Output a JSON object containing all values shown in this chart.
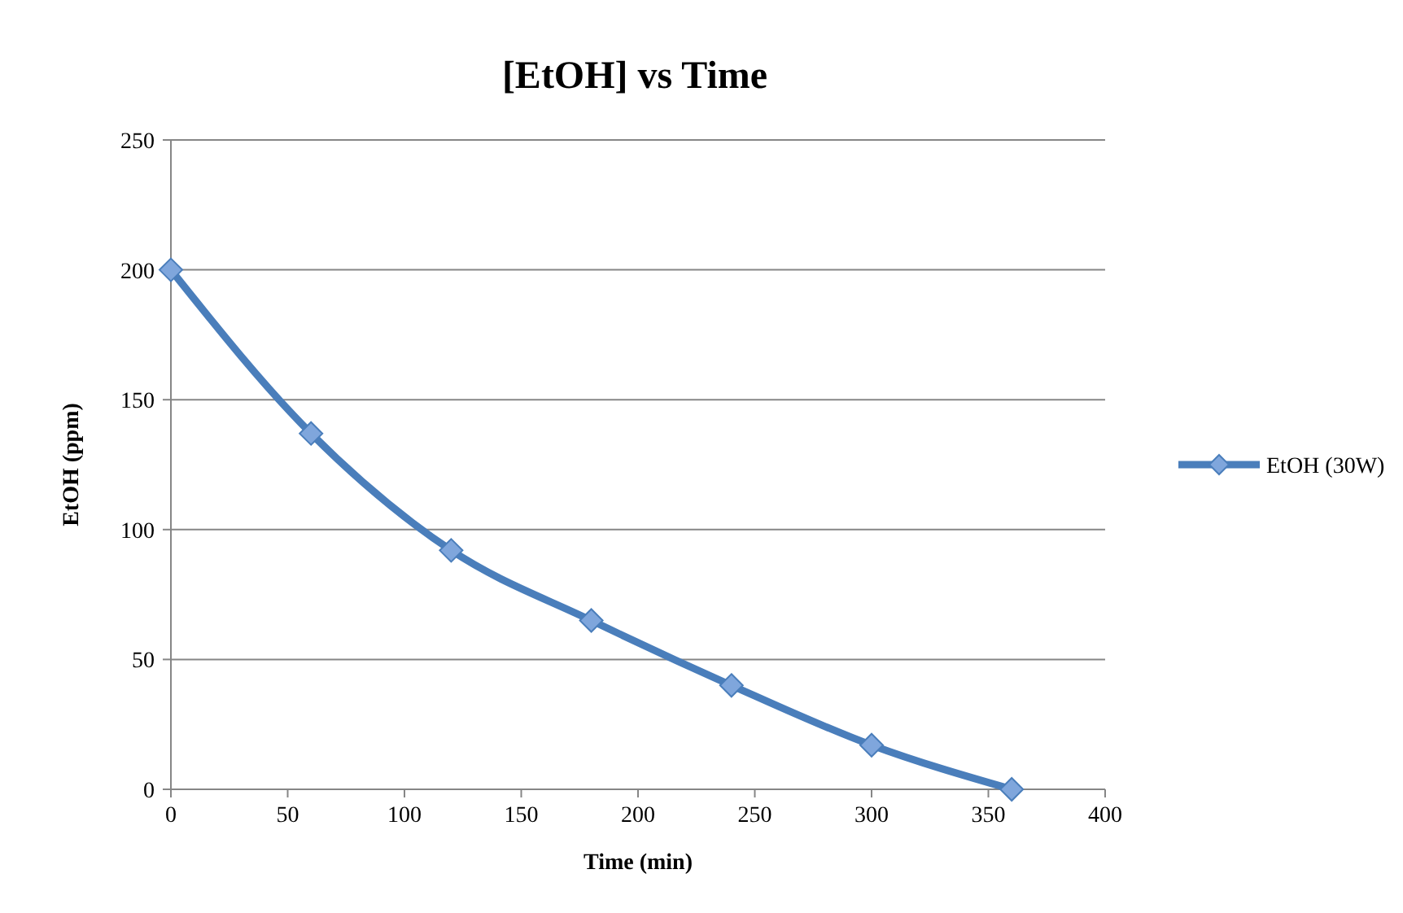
{
  "chart_data": {
    "type": "line",
    "title": "[EtOH] vs Time",
    "xlabel": "Time (min)",
    "ylabel": "EtOH (ppm)",
    "x": [
      0,
      60,
      120,
      180,
      240,
      300,
      360
    ],
    "series": [
      {
        "name": "EtOH (30W)",
        "color": "#4a7ebb",
        "values": [
          200,
          137,
          92,
          65,
          40,
          17,
          0
        ]
      }
    ],
    "xlim": [
      0,
      400
    ],
    "xticks": [
      0,
      50,
      100,
      150,
      200,
      250,
      300,
      350,
      400
    ],
    "ylim": [
      0,
      250
    ],
    "yticks": [
      0,
      50,
      100,
      150,
      200,
      250
    ],
    "grid": "y",
    "legend": "right",
    "marker": "diamond",
    "line_style": "solid"
  }
}
